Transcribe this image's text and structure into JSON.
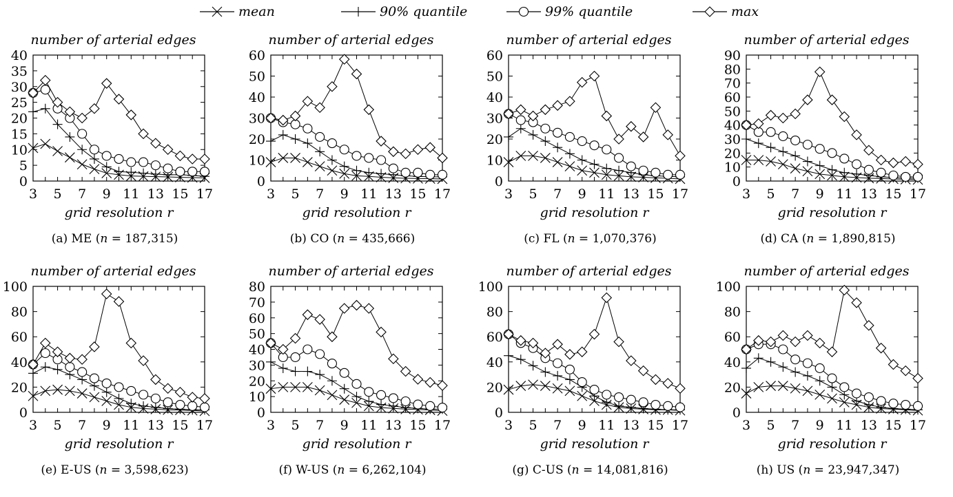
{
  "legend": [
    {
      "name": "mean",
      "marker": "x"
    },
    {
      "name": "90% quantile",
      "marker": "plus"
    },
    {
      "name": "99% quantile",
      "marker": "circle"
    },
    {
      "name": "max",
      "marker": "diamond"
    }
  ],
  "chart_data": [
    {
      "type": "line",
      "ylabel": "number of arterial edges",
      "xlabel": "grid resolution r",
      "caption": "(a) ME (n = 187,315)",
      "caption_name": "ME",
      "caption_n": "187,315",
      "x": [
        3,
        4,
        5,
        6,
        7,
        8,
        9,
        10,
        11,
        12,
        13,
        14,
        15,
        16,
        17
      ],
      "xticks": [
        3,
        5,
        7,
        9,
        11,
        13,
        15,
        17
      ],
      "xlim": [
        3,
        17
      ],
      "ylim": [
        0,
        40
      ],
      "yticks": [
        0,
        5,
        10,
        15,
        20,
        25,
        30,
        35,
        40
      ],
      "series": [
        {
          "name": "mean",
          "values": [
            10.5,
            11.8,
            9.5,
            7.5,
            5.3,
            3.8,
            2.5,
            2,
            1.6,
            1.5,
            1.4,
            1.3,
            1.2,
            1.1,
            1
          ]
        },
        {
          "name": "90% quantile",
          "values": [
            22,
            23,
            18,
            14,
            10,
            7,
            4.5,
            3,
            2.8,
            2.5,
            2.2,
            2,
            2,
            1.8,
            1.5
          ]
        },
        {
          "name": "99% quantile",
          "values": [
            28,
            29,
            23,
            20,
            15,
            10,
            8,
            7,
            6,
            6,
            5,
            4,
            3,
            3,
            3
          ]
        },
        {
          "name": "max",
          "values": [
            28,
            32,
            25,
            22,
            20,
            23,
            31,
            26,
            21,
            15,
            12,
            10,
            8,
            7,
            7
          ]
        }
      ]
    },
    {
      "type": "line",
      "ylabel": "number of arterial edges",
      "xlabel": "grid resolution r",
      "caption": "(b) CO (n = 435,666)",
      "caption_name": "CO",
      "caption_n": "435,666",
      "x": [
        3,
        4,
        5,
        6,
        7,
        8,
        9,
        10,
        11,
        12,
        13,
        14,
        15,
        16,
        17
      ],
      "xticks": [
        3,
        5,
        7,
        9,
        11,
        13,
        15,
        17
      ],
      "xlim": [
        3,
        17
      ],
      "ylim": [
        0,
        60
      ],
      "yticks": [
        0,
        10,
        20,
        30,
        40,
        50,
        60
      ],
      "series": [
        {
          "name": "mean",
          "values": [
            9,
            11,
            11,
            9,
            7,
            5,
            3.5,
            2.5,
            2.2,
            1.8,
            1.5,
            1.3,
            1.2,
            1.1,
            1
          ]
        },
        {
          "name": "90% quantile",
          "values": [
            19,
            22,
            20,
            18,
            14,
            10,
            7,
            5,
            4,
            3.5,
            3,
            2.5,
            2.2,
            2,
            2
          ]
        },
        {
          "name": "99% quantile",
          "values": [
            30,
            28,
            27,
            25,
            21,
            18,
            15,
            12,
            11,
            10,
            6,
            4,
            4,
            3,
            3
          ]
        },
        {
          "name": "max",
          "values": [
            30,
            29,
            31,
            38,
            35,
            45,
            58,
            51,
            34,
            19,
            14,
            13,
            15,
            16,
            11
          ]
        }
      ]
    },
    {
      "type": "line",
      "ylabel": "number of arterial edges",
      "xlabel": "grid resolution r",
      "caption": "(c) FL (n = 1,070,376)",
      "caption_name": "FL",
      "caption_n": "1,070,376",
      "x": [
        3,
        4,
        5,
        6,
        7,
        8,
        9,
        10,
        11,
        12,
        13,
        14,
        15,
        16,
        17
      ],
      "xticks": [
        3,
        5,
        7,
        9,
        11,
        13,
        15,
        17
      ],
      "xlim": [
        3,
        17
      ],
      "ylim": [
        0,
        60
      ],
      "yticks": [
        0,
        10,
        20,
        30,
        40,
        50,
        60
      ],
      "series": [
        {
          "name": "mean",
          "values": [
            9,
            12,
            12,
            11,
            9,
            7,
            5,
            4,
            3,
            2.5,
            2,
            1.8,
            1.5,
            1.3,
            1
          ]
        },
        {
          "name": "90% quantile",
          "values": [
            21,
            25,
            22,
            19,
            16,
            13,
            10,
            8,
            6,
            5,
            4,
            3,
            2.5,
            2.2,
            2
          ]
        },
        {
          "name": "99% quantile",
          "values": [
            32,
            29,
            28,
            25,
            23,
            21,
            19,
            17,
            15,
            11,
            7,
            5,
            4,
            3,
            3
          ]
        },
        {
          "name": "max",
          "values": [
            32,
            34,
            31,
            34,
            36,
            38,
            47,
            50,
            31,
            20,
            26,
            21,
            35,
            22,
            12
          ]
        }
      ]
    },
    {
      "type": "line",
      "ylabel": "number of arterial edges",
      "xlabel": "grid resolution r",
      "caption": "(d) CA (n = 1,890,815)",
      "caption_name": "CA",
      "caption_n": "1,890,815",
      "x": [
        3,
        4,
        5,
        6,
        7,
        8,
        9,
        10,
        11,
        12,
        13,
        14,
        15,
        16,
        17
      ],
      "xticks": [
        3,
        5,
        7,
        9,
        11,
        13,
        15,
        17
      ],
      "xlim": [
        3,
        17
      ],
      "ylim": [
        0,
        90
      ],
      "yticks": [
        0,
        10,
        20,
        30,
        40,
        50,
        60,
        70,
        80,
        90
      ],
      "series": [
        {
          "name": "mean",
          "values": [
            15,
            15,
            14,
            12,
            9,
            7,
            5,
            4,
            3,
            2.5,
            2,
            1.8,
            1.5,
            1.2,
            1
          ]
        },
        {
          "name": "90% quantile",
          "values": [
            30,
            27,
            24,
            21,
            18,
            14,
            11,
            8,
            6,
            5,
            4,
            3,
            2.5,
            2,
            2
          ]
        },
        {
          "name": "99% quantile",
          "values": [
            40,
            35,
            35,
            32,
            29,
            26,
            23,
            20,
            16,
            12,
            8,
            6,
            4,
            3,
            3
          ]
        },
        {
          "name": "max",
          "values": [
            40,
            41,
            47,
            45,
            48,
            58,
            78,
            58,
            46,
            33,
            22,
            15,
            13,
            14,
            12
          ]
        }
      ]
    },
    {
      "type": "line",
      "ylabel": "number of arterial edges",
      "xlabel": "grid resolution r",
      "caption": "(e) E-US (n = 3,598,623)",
      "caption_name": "E-US",
      "caption_n": "3,598,623",
      "x": [
        3,
        4,
        5,
        6,
        7,
        8,
        9,
        10,
        11,
        12,
        13,
        14,
        15,
        16,
        17
      ],
      "xticks": [
        3,
        5,
        7,
        9,
        11,
        13,
        15,
        17
      ],
      "xlim": [
        3,
        17
      ],
      "ylim": [
        0,
        100
      ],
      "yticks": [
        0,
        20,
        40,
        60,
        80,
        100
      ],
      "series": [
        {
          "name": "mean",
          "values": [
            13,
            17,
            18,
            17,
            15,
            12,
            9,
            6,
            4,
            3,
            2.5,
            2,
            1.8,
            1.5,
            1
          ]
        },
        {
          "name": "90% quantile",
          "values": [
            31,
            36,
            34,
            30,
            26,
            21,
            16,
            11,
            7,
            5,
            4,
            3,
            2.5,
            2,
            2
          ]
        },
        {
          "name": "99% quantile",
          "values": [
            38,
            47,
            42,
            36,
            32,
            27,
            23,
            20,
            17,
            14,
            11,
            8,
            6,
            5,
            4
          ]
        },
        {
          "name": "max",
          "values": [
            38,
            55,
            48,
            43,
            42,
            52,
            94,
            88,
            55,
            41,
            26,
            19,
            16,
            12,
            11
          ]
        }
      ]
    },
    {
      "type": "line",
      "ylabel": "number of arterial edges",
      "xlabel": "grid resolution r",
      "caption": "(f) W-US (n = 6,262,104)",
      "caption_name": "W-US",
      "caption_n": "6,262,104",
      "x": [
        3,
        4,
        5,
        6,
        7,
        8,
        9,
        10,
        11,
        12,
        13,
        14,
        15,
        16,
        17
      ],
      "xticks": [
        3,
        5,
        7,
        9,
        11,
        13,
        15,
        17
      ],
      "xlim": [
        3,
        17
      ],
      "ylim": [
        0,
        80
      ],
      "yticks": [
        0,
        10,
        20,
        30,
        40,
        50,
        60,
        70,
        80
      ],
      "series": [
        {
          "name": "mean",
          "values": [
            15,
            16,
            16,
            16,
            14,
            11,
            8,
            6,
            4,
            3,
            2.5,
            2,
            1.8,
            1.5,
            1
          ]
        },
        {
          "name": "90% quantile",
          "values": [
            32,
            28,
            26,
            26,
            24,
            20,
            15,
            10,
            7,
            5,
            4,
            3,
            2.5,
            2,
            2
          ]
        },
        {
          "name": "99% quantile",
          "values": [
            44,
            35,
            35,
            40,
            37,
            31,
            25,
            18,
            13,
            11,
            9,
            7,
            5,
            4,
            3
          ]
        },
        {
          "name": "max",
          "values": [
            44,
            40,
            47,
            62,
            59,
            48,
            66,
            68,
            66,
            51,
            34,
            26,
            21,
            19,
            17
          ]
        }
      ]
    },
    {
      "type": "line",
      "ylabel": "number of arterial edges",
      "xlabel": "grid resolution r",
      "caption": "(g) C-US (n = 14,081,816)",
      "caption_name": "C-US",
      "caption_n": "14,081,816",
      "x": [
        3,
        4,
        5,
        6,
        7,
        8,
        9,
        10,
        11,
        12,
        13,
        14,
        15,
        16,
        17
      ],
      "xticks": [
        3,
        5,
        7,
        9,
        11,
        13,
        15,
        17
      ],
      "xlim": [
        3,
        17
      ],
      "ylim": [
        0,
        100
      ],
      "yticks": [
        0,
        20,
        40,
        60,
        80,
        100
      ],
      "series": [
        {
          "name": "mean",
          "values": [
            18,
            21,
            22,
            21,
            19,
            17,
            13,
            9,
            6,
            4,
            3,
            2.5,
            2,
            2,
            1.5
          ]
        },
        {
          "name": "90% quantile",
          "values": [
            45,
            42,
            37,
            32,
            29,
            26,
            20,
            13,
            8,
            5,
            4,
            3,
            2.5,
            2,
            2
          ]
        },
        {
          "name": "99% quantile",
          "values": [
            62,
            55,
            51,
            43,
            39,
            34,
            24,
            18,
            14,
            12,
            10,
            8,
            6,
            5,
            4
          ]
        },
        {
          "name": "max",
          "values": [
            62,
            57,
            55,
            47,
            54,
            46,
            48,
            62,
            91,
            56,
            41,
            33,
            26,
            23,
            19
          ]
        }
      ]
    },
    {
      "type": "line",
      "ylabel": "number of arterial edges",
      "xlabel": "grid resolution r",
      "caption": "(h) US (n = 23,947,347)",
      "caption_name": "US",
      "caption_n": "23,947,347",
      "x": [
        3,
        4,
        5,
        6,
        7,
        8,
        9,
        10,
        11,
        12,
        13,
        14,
        15,
        16,
        17
      ],
      "xticks": [
        3,
        5,
        7,
        9,
        11,
        13,
        15,
        17
      ],
      "xlim": [
        3,
        17
      ],
      "ylim": [
        0,
        100
      ],
      "yticks": [
        0,
        20,
        40,
        60,
        80,
        100
      ],
      "series": [
        {
          "name": "mean",
          "values": [
            15,
            20,
            21,
            21,
            19,
            17,
            14,
            11,
            8,
            6,
            4,
            3,
            2.5,
            2,
            1.5
          ]
        },
        {
          "name": "90% quantile",
          "values": [
            35,
            43,
            40,
            36,
            32,
            29,
            25,
            20,
            14,
            9,
            6,
            4,
            3,
            2.5,
            2
          ]
        },
        {
          "name": "99% quantile",
          "values": [
            50,
            54,
            54,
            50,
            42,
            39,
            35,
            27,
            20,
            15,
            12,
            9,
            7,
            6,
            5
          ]
        },
        {
          "name": "max",
          "values": [
            50,
            57,
            56,
            61,
            56,
            61,
            55,
            48,
            97,
            87,
            69,
            51,
            38,
            33,
            27
          ]
        }
      ]
    }
  ]
}
